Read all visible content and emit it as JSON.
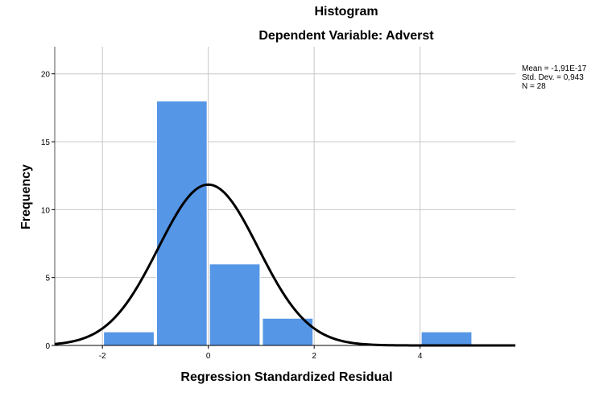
{
  "chart_data": {
    "type": "bar",
    "title": "Histogram",
    "subtitle": "Dependent Variable: Adverst",
    "xlabel": "Regression Standardized Residual",
    "ylabel": "Frequency",
    "xlim": [
      -2.9,
      5.8
    ],
    "ylim": [
      0,
      22
    ],
    "x_ticks": [
      -2,
      0,
      2,
      4
    ],
    "x_tick_labels": [
      "-2",
      "0",
      "2",
      "4"
    ],
    "y_ticks": [
      0,
      5,
      10,
      15,
      20
    ],
    "y_tick_labels": [
      "0",
      "5",
      "10",
      "15",
      "20"
    ],
    "grid": true,
    "bins": [
      {
        "start": -2,
        "end": -1,
        "count": 1
      },
      {
        "start": -1,
        "end": 0,
        "count": 18
      },
      {
        "start": 0,
        "end": 1,
        "count": 6
      },
      {
        "start": 1,
        "end": 2,
        "count": 2
      },
      {
        "start": 2,
        "end": 3,
        "count": 0
      },
      {
        "start": 3,
        "end": 4,
        "count": 0
      },
      {
        "start": 4,
        "end": 5,
        "count": 1
      }
    ],
    "normal_curve": {
      "mean": 0,
      "sd": 0.943,
      "n": 28,
      "bin_width": 1
    },
    "bar_color": "#5596e6",
    "curve_color": "#000000",
    "stats": {
      "mean": "Mean = -1,91E-17",
      "sd": "Std. Dev. = 0,943",
      "n": "N = 28"
    }
  }
}
